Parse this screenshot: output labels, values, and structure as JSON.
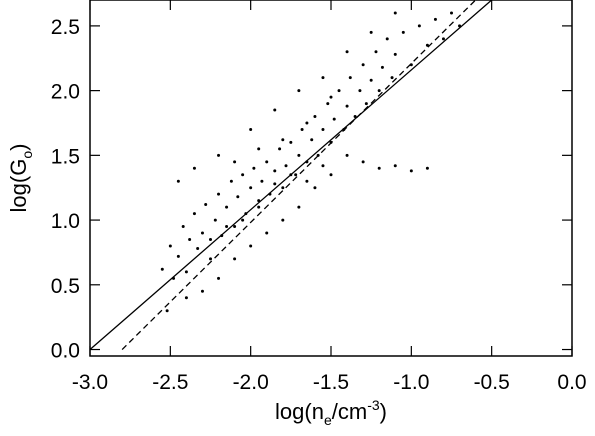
{
  "chart_data": {
    "type": "scatter",
    "title": "",
    "xlabel": {
      "prefix": "log(n",
      "sub": "e",
      "mid": "/cm",
      "sup": "-3",
      "suffix": ")"
    },
    "ylabel": {
      "prefix": "log(G",
      "sub": "o",
      "suffix": ")"
    },
    "xlim": [
      -3.0,
      0.0
    ],
    "ylim": [
      -0.05,
      2.7
    ],
    "xticks": [
      -3.0,
      -2.5,
      -2.0,
      -1.5,
      -1.0,
      -0.5,
      0.0
    ],
    "xtick_labels": [
      "-3.0",
      "-2.5",
      "-2.0",
      "-1.5",
      "-1.0",
      "-0.5",
      "0.0"
    ],
    "yticks": [
      0.0,
      0.5,
      1.0,
      1.5,
      2.0,
      2.5
    ],
    "ytick_labels": [
      "0.0",
      "0.5",
      "1.0",
      "1.5",
      "2.0",
      "2.5"
    ],
    "grid": false,
    "points": [
      [
        -2.55,
        0.62
      ],
      [
        -2.5,
        0.8
      ],
      [
        -2.48,
        0.55
      ],
      [
        -2.45,
        0.72
      ],
      [
        -2.42,
        0.95
      ],
      [
        -2.4,
        0.6
      ],
      [
        -2.38,
        0.85
      ],
      [
        -2.35,
        1.05
      ],
      [
        -2.33,
        0.78
      ],
      [
        -2.3,
        0.9
      ],
      [
        -2.28,
        1.12
      ],
      [
        -2.25,
        0.7
      ],
      [
        -2.22,
        1.0
      ],
      [
        -2.2,
        1.2
      ],
      [
        -2.18,
        0.88
      ],
      [
        -2.15,
        1.1
      ],
      [
        -2.12,
        1.3
      ],
      [
        -2.1,
        0.95
      ],
      [
        -2.08,
        1.18
      ],
      [
        -2.05,
        1.35
      ],
      [
        -2.03,
        1.05
      ],
      [
        -2.0,
        1.25
      ],
      [
        -1.98,
        1.4
      ],
      [
        -1.95,
        1.1
      ],
      [
        -1.93,
        1.3
      ],
      [
        -1.9,
        1.45
      ],
      [
        -1.88,
        1.2
      ],
      [
        -1.85,
        1.38
      ],
      [
        -1.82,
        1.55
      ],
      [
        -1.8,
        1.25
      ],
      [
        -1.78,
        1.42
      ],
      [
        -1.75,
        1.6
      ],
      [
        -1.72,
        1.35
      ],
      [
        -1.7,
        1.5
      ],
      [
        -1.68,
        1.7
      ],
      [
        -1.65,
        1.45
      ],
      [
        -1.62,
        1.62
      ],
      [
        -1.6,
        1.8
      ],
      [
        -1.58,
        1.5
      ],
      [
        -1.55,
        1.7
      ],
      [
        -1.52,
        1.9
      ],
      [
        -1.5,
        1.6
      ],
      [
        -1.48,
        1.78
      ],
      [
        -1.45,
        2.0
      ],
      [
        -1.42,
        1.7
      ],
      [
        -1.4,
        1.88
      ],
      [
        -1.38,
        2.1
      ],
      [
        -1.35,
        1.8
      ],
      [
        -1.32,
        2.0
      ],
      [
        -1.3,
        2.2
      ],
      [
        -1.28,
        1.9
      ],
      [
        -1.25,
        2.08
      ],
      [
        -1.22,
        2.3
      ],
      [
        -1.2,
        2.0
      ],
      [
        -1.18,
        2.18
      ],
      [
        -1.15,
        2.4
      ],
      [
        -1.12,
        2.1
      ],
      [
        -1.1,
        2.28
      ],
      [
        -1.05,
        2.45
      ],
      [
        -1.0,
        2.2
      ],
      [
        -0.95,
        2.5
      ],
      [
        -0.9,
        2.35
      ],
      [
        -0.85,
        2.55
      ],
      [
        -0.8,
        2.4
      ],
      [
        -0.75,
        2.6
      ],
      [
        -0.7,
        2.5
      ],
      [
        -2.3,
        0.45
      ],
      [
        -2.2,
        0.55
      ],
      [
        -2.1,
        0.7
      ],
      [
        -2.0,
        0.8
      ],
      [
        -1.9,
        0.9
      ],
      [
        -1.8,
        1.0
      ],
      [
        -1.7,
        1.1
      ],
      [
        -1.6,
        1.25
      ],
      [
        -1.5,
        1.35
      ],
      [
        -1.4,
        1.5
      ],
      [
        -1.3,
        1.45
      ],
      [
        -1.2,
        1.4
      ],
      [
        -1.1,
        1.42
      ],
      [
        -1.0,
        1.38
      ],
      [
        -0.9,
        1.4
      ],
      [
        -2.45,
        1.3
      ],
      [
        -2.35,
        1.4
      ],
      [
        -2.2,
        1.5
      ],
      [
        -2.0,
        1.7
      ],
      [
        -1.85,
        1.85
      ],
      [
        -1.7,
        2.0
      ],
      [
        -1.55,
        2.1
      ],
      [
        -1.4,
        2.3
      ],
      [
        -1.25,
        2.45
      ],
      [
        -1.1,
        2.6
      ],
      [
        -2.52,
        0.3
      ],
      [
        -2.4,
        0.4
      ],
      [
        -2.25,
        0.85
      ],
      [
        -2.15,
        0.95
      ],
      [
        -2.05,
        1.0
      ],
      [
        -1.95,
        1.15
      ],
      [
        -1.85,
        1.28
      ],
      [
        -1.75,
        1.35
      ],
      [
        -1.65,
        1.3
      ],
      [
        -1.55,
        1.42
      ],
      [
        -2.1,
        1.45
      ],
      [
        -1.95,
        1.55
      ],
      [
        -1.8,
        1.62
      ],
      [
        -1.65,
        1.75
      ],
      [
        -1.5,
        1.95
      ]
    ],
    "lines": [
      {
        "style": "solid",
        "x": [
          -3.0,
          -0.5
        ],
        "y": [
          0.0,
          2.7
        ]
      },
      {
        "style": "dashed",
        "x": [
          -2.8,
          -0.6
        ],
        "y": [
          0.0,
          2.7
        ]
      }
    ]
  }
}
